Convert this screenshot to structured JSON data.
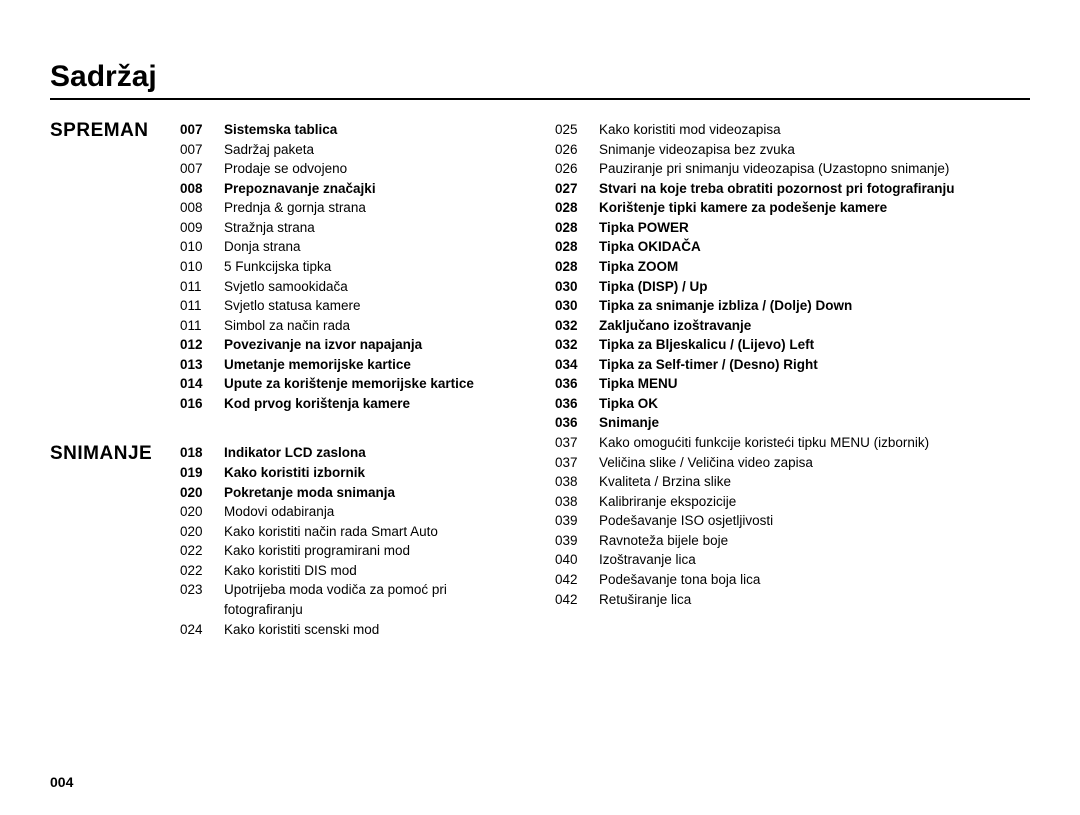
{
  "title": "Sadržaj",
  "page_number": "004",
  "colors": {
    "text": "#000000",
    "background": "#ffffff",
    "rule": "#000000"
  },
  "typography": {
    "title_fontsize_pt": 22,
    "section_label_fontsize_pt": 14,
    "body_fontsize_pt": 10,
    "line_height": 1.45
  },
  "col1": {
    "sections": [
      {
        "label": "SPREMAN",
        "entries": [
          {
            "pg": "007",
            "txt": "Sistemska tablica",
            "bold": true
          },
          {
            "pg": "007",
            "txt": "Sadržaj paketa"
          },
          {
            "pg": "007",
            "txt": "Prodaje se odvojeno"
          },
          {
            "pg": "008",
            "txt": "Prepoznavanje značajki",
            "bold": true
          },
          {
            "pg": "008",
            "txt": "Prednja & gornja strana"
          },
          {
            "pg": "009",
            "txt": "Stražnja strana"
          },
          {
            "pg": "010",
            "txt": "Donja strana"
          },
          {
            "pg": "010",
            "txt": "5 Funkcijska tipka"
          },
          {
            "pg": "011",
            "txt": "Svjetlo samookidača"
          },
          {
            "pg": "011",
            "txt": "Svjetlo statusa kamere"
          },
          {
            "pg": "011",
            "txt": "Simbol za način rada"
          },
          {
            "pg": "012",
            "txt": "Povezivanje na izvor napajanja",
            "bold": true
          },
          {
            "pg": "013",
            "txt": "Umetanje memorijske kartice",
            "bold": true
          },
          {
            "pg": "014",
            "txt": "Upute za korištenje memorijske kartice",
            "bold": true
          },
          {
            "pg": "016",
            "txt": "Kod prvog korištenja kamere",
            "bold": true
          }
        ]
      },
      {
        "label": "SNIMANJE",
        "entries": [
          {
            "pg": "018",
            "txt": "Indikator LCD zaslona",
            "bold": true
          },
          {
            "pg": "019",
            "txt": "Kako koristiti izbornik",
            "bold": true
          },
          {
            "pg": "020",
            "txt": "Pokretanje moda snimanja",
            "bold": true
          },
          {
            "pg": "020",
            "txt": "Modovi odabiranja"
          },
          {
            "pg": "020",
            "txt": "Kako koristiti način rada Smart Auto"
          },
          {
            "pg": "022",
            "txt": "Kako koristiti programirani mod"
          },
          {
            "pg": "022",
            "txt": "Kako koristiti DIS mod"
          },
          {
            "pg": "023",
            "txt": "Upotrijeba moda vodiča za pomoć pri fotografiranju"
          },
          {
            "pg": "024",
            "txt": "Kako koristiti scenski mod"
          }
        ]
      }
    ]
  },
  "col2": {
    "entries": [
      {
        "pg": "025",
        "txt": "Kako koristiti mod videozapisa"
      },
      {
        "pg": "026",
        "txt": "Snimanje videozapisa bez zvuka"
      },
      {
        "pg": "026",
        "txt": "Pauziranje pri snimanju videozapisa (Uzastopno snimanje)"
      },
      {
        "pg": "027",
        "txt": "Stvari na koje treba obratiti pozornost pri fotografiranju",
        "bold": true
      },
      {
        "pg": "028",
        "txt": "Korištenje tipki kamere za podešenje kamere",
        "bold": true
      },
      {
        "pg": "028",
        "txt": "Tipka POWER",
        "bold": true
      },
      {
        "pg": "028",
        "txt": "Tipka OKIDAČA",
        "bold": true
      },
      {
        "pg": "028",
        "txt": "Tipka ZOOM",
        "bold": true
      },
      {
        "pg": "030",
        "txt": "Tipka (DISP) / Up",
        "bold": true
      },
      {
        "pg": "030",
        "txt": "Tipka za snimanje izbliza / (Dolje) Down",
        "bold": true
      },
      {
        "pg": "032",
        "txt": "Zaključano izoštravanje",
        "bold": true
      },
      {
        "pg": "032",
        "txt": "Tipka za Bljeskalicu / (Lijevo) Left",
        "bold": true
      },
      {
        "pg": "034",
        "txt": "Tipka za Self-timer / (Desno) Right",
        "bold": true
      },
      {
        "pg": "036",
        "txt": "Tipka MENU",
        "bold": true
      },
      {
        "pg": "036",
        "txt": "Tipka OK",
        "bold": true
      },
      {
        "pg": "036",
        "txt": "Snimanje",
        "bold": true
      },
      {
        "pg": "037",
        "txt": "Kako omogućiti funkcije koristeći tipku MENU (izbornik)"
      },
      {
        "pg": "037",
        "txt": "Veličina slike / Veličina video zapisa"
      },
      {
        "pg": "038",
        "txt": "Kvaliteta / Brzina slike"
      },
      {
        "pg": "038",
        "txt": "Kalibriranje ekspozicije"
      },
      {
        "pg": "039",
        "txt": "Podešavanje ISO osjetljivosti"
      },
      {
        "pg": "039",
        "txt": "Ravnoteža bijele boje"
      },
      {
        "pg": "040",
        "txt": "Izoštravanje lica"
      },
      {
        "pg": "042",
        "txt": "Podešavanje tona boja lica"
      },
      {
        "pg": "042",
        "txt": "Retuširanje lica"
      }
    ]
  }
}
